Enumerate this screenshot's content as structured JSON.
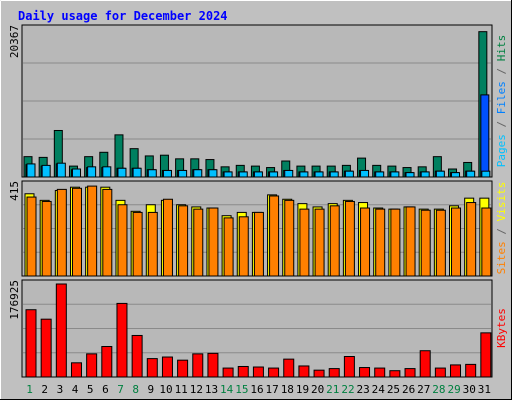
{
  "chart_data": {
    "type": "bar",
    "title": "Daily usage for December 2024",
    "days": [
      {
        "label": "1",
        "weekend": true
      },
      {
        "label": "2",
        "weekend": false
      },
      {
        "label": "3",
        "weekend": false
      },
      {
        "label": "4",
        "weekend": false
      },
      {
        "label": "5",
        "weekend": false
      },
      {
        "label": "6",
        "weekend": false
      },
      {
        "label": "7",
        "weekend": true
      },
      {
        "label": "8",
        "weekend": true
      },
      {
        "label": "9",
        "weekend": false
      },
      {
        "label": "10",
        "weekend": false
      },
      {
        "label": "11",
        "weekend": false
      },
      {
        "label": "12",
        "weekend": false
      },
      {
        "label": "13",
        "weekend": false
      },
      {
        "label": "14",
        "weekend": true
      },
      {
        "label": "15",
        "weekend": true
      },
      {
        "label": "16",
        "weekend": false
      },
      {
        "label": "17",
        "weekend": false
      },
      {
        "label": "18",
        "weekend": false
      },
      {
        "label": "19",
        "weekend": false
      },
      {
        "label": "20",
        "weekend": false
      },
      {
        "label": "21",
        "weekend": true
      },
      {
        "label": "22",
        "weekend": true
      },
      {
        "label": "23",
        "weekend": false
      },
      {
        "label": "24",
        "weekend": false
      },
      {
        "label": "25",
        "weekend": false
      },
      {
        "label": "26",
        "weekend": false
      },
      {
        "label": "27",
        "weekend": false
      },
      {
        "label": "28",
        "weekend": true
      },
      {
        "label": "29",
        "weekend": true
      },
      {
        "label": "30",
        "weekend": false
      },
      {
        "label": "31",
        "weekend": false
      }
    ],
    "panels": [
      {
        "max_label": "20367",
        "ymax": 20367,
        "legend": [
          {
            "text": "Pages",
            "color": "#00c0ff"
          },
          {
            "text": " / ",
            "color": "#666666"
          },
          {
            "text": "Files",
            "color": "#0080ff"
          },
          {
            "text": " / ",
            "color": "#666666"
          },
          {
            "text": "Hits",
            "color": "#008040"
          }
        ],
        "series": [
          {
            "key": "hits",
            "color": "#008060",
            "values": [
              2800,
              2700,
              6400,
              1500,
              2800,
              3400,
              5800,
              3900,
              2900,
              3000,
              2500,
              2500,
              2400,
              1400,
              1600,
              1500,
              1300,
              2200,
              1500,
              1500,
              1500,
              1600,
              2600,
              1600,
              1500,
              1300,
              1400,
              2800,
              1100,
              2000,
              20000
            ]
          },
          {
            "key": "files",
            "color": "#0050ff",
            "values": [
              1700,
              1500,
              1800,
              1000,
              1300,
              1300,
              1200,
              1200,
              1000,
              900,
              900,
              1000,
              1000,
              700,
              700,
              700,
              700,
              900,
              700,
              700,
              700,
              800,
              900,
              700,
              700,
              600,
              700,
              800,
              600,
              800,
              11300
            ]
          },
          {
            "key": "pages",
            "color": "#00c0ff",
            "values": [
              1800,
              1600,
              1900,
              1100,
              1400,
              1400,
              1200,
              1200,
              1000,
              900,
              900,
              1000,
              1000,
              700,
              700,
              700,
              700,
              900,
              700,
              700,
              700,
              800,
              900,
              700,
              700,
              600,
              700,
              800,
              600,
              800,
              800
            ]
          }
        ]
      },
      {
        "max_label": "415",
        "ymax": 415,
        "legend": [
          {
            "text": "Sites",
            "color": "#ff8000"
          },
          {
            "text": " / ",
            "color": "#666666"
          },
          {
            "text": "Visits",
            "color": "#ffff00"
          }
        ],
        "series": [
          {
            "key": "visits",
            "color": "#ffff00",
            "values": [
              375,
              345,
              390,
              405,
              405,
              405,
              345,
              295,
              325,
              345,
              325,
              315,
              310,
              275,
              290,
              290,
              370,
              350,
              330,
              315,
              330,
              345,
              335,
              310,
              305,
              315,
              305,
              305,
              320,
              355,
              355
            ]
          },
          {
            "key": "sites",
            "color": "#ff8000",
            "values": [
              360,
              340,
              395,
              400,
              410,
              395,
              325,
              290,
              290,
              350,
              320,
              305,
              310,
              265,
              270,
              290,
              365,
              345,
              305,
              305,
              320,
              340,
              310,
              305,
              305,
              315,
              300,
              300,
              310,
              335,
              310
            ]
          }
        ]
      },
      {
        "max_label": "176925",
        "ymax": 176925,
        "legend": [
          {
            "text": "KBytes",
            "color": "#ff0000"
          }
        ],
        "series": [
          {
            "key": "kbytes",
            "color": "#ff0000",
            "values": [
              128000,
              110000,
              176925,
              27000,
              44000,
              58000,
              140000,
              79000,
              35000,
              38000,
              32000,
              44000,
              45000,
              17000,
              20000,
              19000,
              17000,
              34000,
              21000,
              13000,
              16000,
              39000,
              18000,
              17000,
              12000,
              16000,
              50000,
              17000,
              23000,
              24000,
              84000
            ]
          }
        ]
      }
    ]
  }
}
